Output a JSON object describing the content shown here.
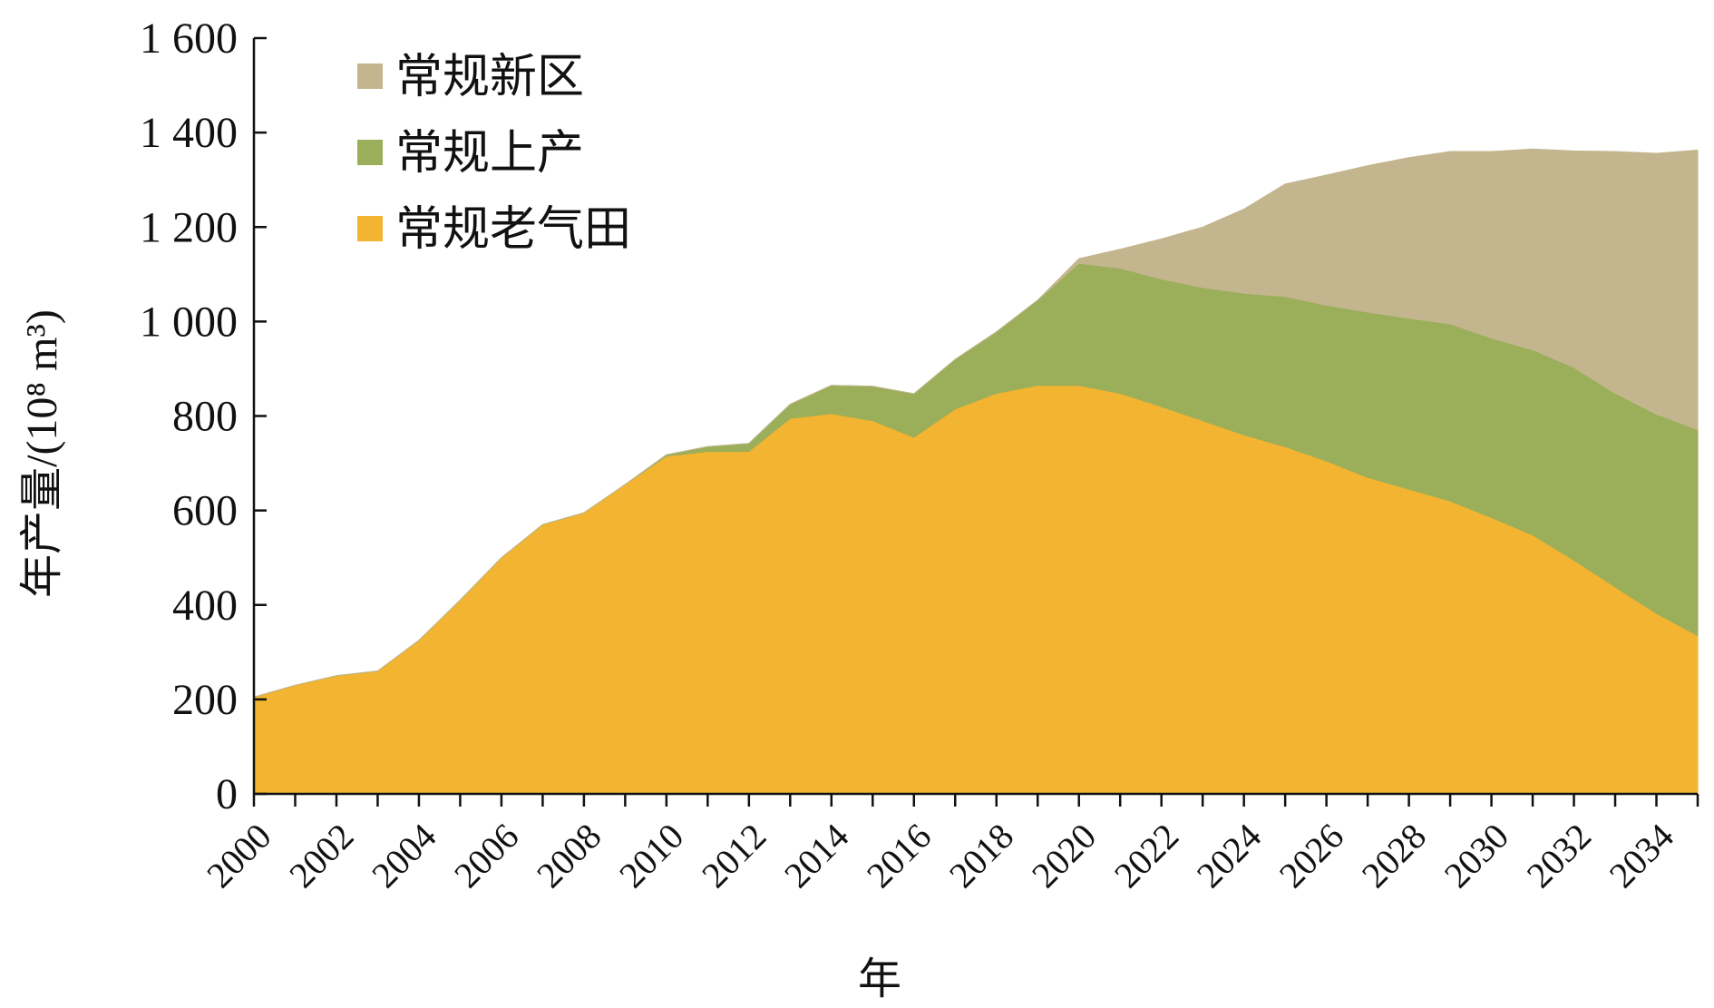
{
  "chart_data": {
    "type": "area",
    "stacked": true,
    "title": "",
    "xlabel": "年",
    "ylabel": "年产量/(10⁸ m³)",
    "ylim": [
      0,
      1600
    ],
    "xlim": [
      2000,
      2035
    ],
    "grid": false,
    "legend_position": "top-left",
    "y_ticks": [
      0,
      200,
      400,
      600,
      800,
      1000,
      1200,
      1400,
      1600
    ],
    "y_tick_labels": [
      "0",
      "200",
      "400",
      "600",
      "800",
      "1 000",
      "1 200",
      "1 400",
      "1 600"
    ],
    "x_tick_labels": [
      "2000",
      "2002",
      "2004",
      "2006",
      "2008",
      "2010",
      "2012",
      "2014",
      "2016",
      "2018",
      "2020",
      "2022",
      "2024",
      "2026",
      "2028",
      "2030",
      "2032",
      "2034"
    ],
    "x": [
      2000,
      2001,
      2002,
      2003,
      2004,
      2005,
      2006,
      2007,
      2008,
      2009,
      2010,
      2011,
      2012,
      2013,
      2014,
      2015,
      2016,
      2017,
      2018,
      2019,
      2020,
      2021,
      2022,
      2023,
      2024,
      2025,
      2026,
      2027,
      2028,
      2029,
      2030,
      2031,
      2032,
      2033,
      2034,
      2035
    ],
    "legend_order": [
      2,
      1,
      0
    ],
    "series": [
      {
        "name": "常规老气田",
        "color": "#f2b431",
        "values": [
          205,
          230,
          250,
          260,
          325,
          410,
          500,
          570,
          595,
          655,
          715,
          725,
          725,
          795,
          805,
          790,
          755,
          815,
          848,
          865,
          865,
          848,
          820,
          790,
          760,
          735,
          705,
          670,
          645,
          620,
          585,
          548,
          495,
          438,
          382,
          335
        ]
      },
      {
        "name": "常规上产",
        "color": "#9bae5a",
        "values": [
          0,
          0,
          0,
          0,
          0,
          0,
          0,
          0,
          0,
          0,
          3,
          10,
          17,
          30,
          60,
          73,
          92,
          105,
          130,
          180,
          258,
          265,
          270,
          282,
          300,
          318,
          330,
          350,
          362,
          375,
          380,
          392,
          408,
          410,
          422,
          436
        ]
      },
      {
        "name": "常规新区",
        "color": "#c3b68f",
        "values": [
          0,
          0,
          0,
          0,
          0,
          0,
          0,
          0,
          0,
          0,
          0,
          0,
          0,
          0,
          0,
          0,
          0,
          0,
          0,
          0,
          10,
          40,
          85,
          128,
          178,
          238,
          275,
          310,
          340,
          365,
          395,
          425,
          458,
          512,
          552,
          592
        ]
      }
    ]
  }
}
